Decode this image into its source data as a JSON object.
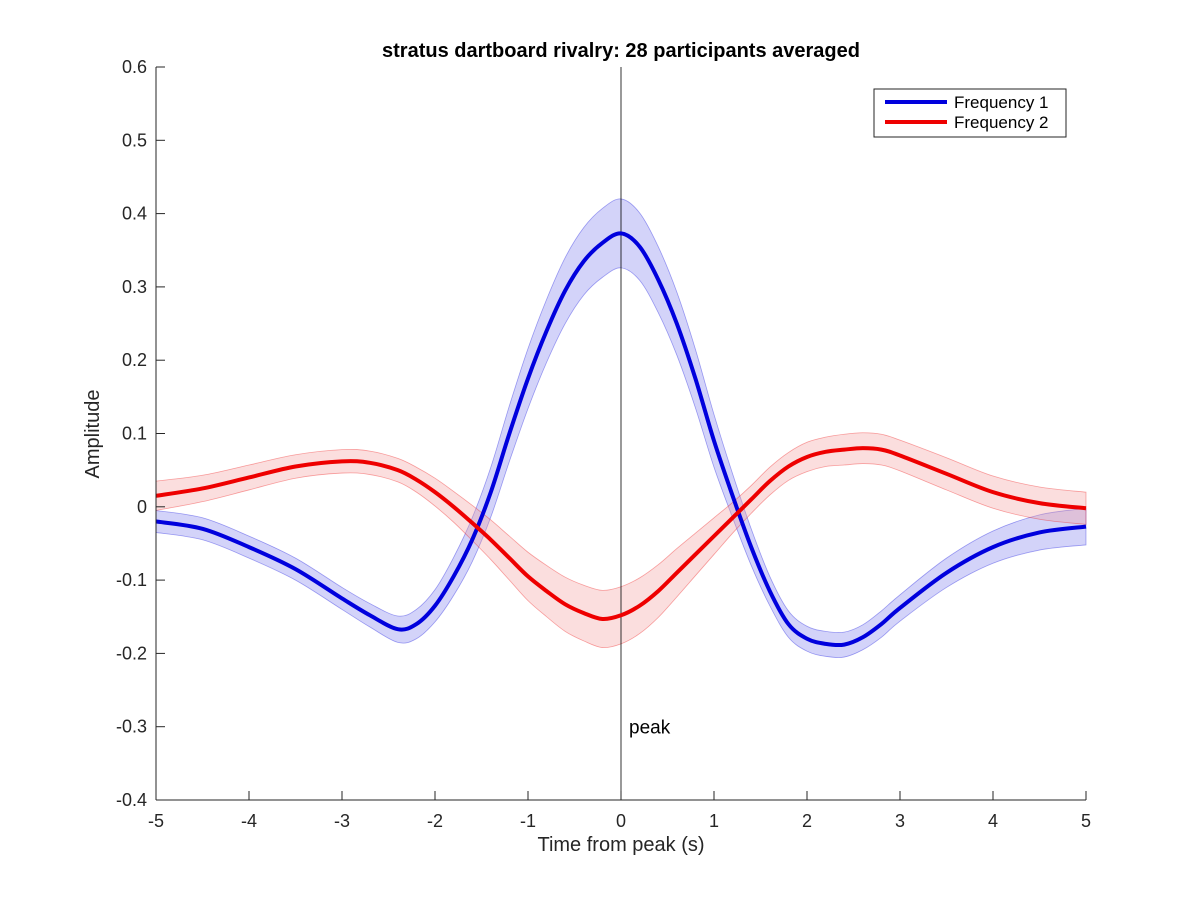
{
  "chart_data": {
    "type": "line",
    "title": "stratus dartboard rivalry: 28 participants averaged",
    "xlabel": "Time from peak (s)",
    "ylabel": "Amplitude",
    "xlim": [
      -5,
      5
    ],
    "ylim": [
      -0.4,
      0.6
    ],
    "xticks": [
      -5,
      -4,
      -3,
      -2,
      -1,
      0,
      1,
      2,
      3,
      4,
      5
    ],
    "yticks": [
      -0.4,
      -0.3,
      -0.2,
      -0.1,
      0,
      0.1,
      0.2,
      0.3,
      0.4,
      0.5,
      0.6
    ],
    "xtick_labels": [
      "-5",
      "-4",
      "-3",
      "-2",
      "-1",
      "0",
      "1",
      "2",
      "3",
      "4",
      "5"
    ],
    "ytick_labels": [
      "-0.4",
      "-0.3",
      "-0.2",
      "-0.1",
      "0",
      "0.1",
      "0.2",
      "0.3",
      "0.4",
      "0.5",
      "0.6"
    ],
    "grid": false,
    "legend_position": "top-right",
    "vline": {
      "x": 0,
      "label": "peak",
      "label_y": -0.3
    },
    "series": [
      {
        "name": "Frequency 1",
        "color": "#0000dd",
        "band_color": "#8080ee",
        "x": [
          -5,
          -4.5,
          -4,
          -3.5,
          -3,
          -2.7,
          -2.4,
          -2.2,
          -2,
          -1.8,
          -1.6,
          -1.4,
          -1.2,
          -1,
          -0.8,
          -0.6,
          -0.4,
          -0.2,
          0,
          0.2,
          0.4,
          0.6,
          0.8,
          1,
          1.2,
          1.4,
          1.6,
          1.8,
          2,
          2.2,
          2.4,
          2.6,
          2.8,
          3,
          3.5,
          4,
          4.5,
          5
        ],
        "y": [
          -0.02,
          -0.03,
          -0.055,
          -0.085,
          -0.125,
          -0.148,
          -0.167,
          -0.16,
          -0.135,
          -0.095,
          -0.045,
          0.02,
          0.1,
          0.175,
          0.24,
          0.295,
          0.335,
          0.36,
          0.373,
          0.355,
          0.31,
          0.25,
          0.175,
          0.09,
          0.015,
          -0.055,
          -0.115,
          -0.16,
          -0.18,
          -0.187,
          -0.188,
          -0.178,
          -0.16,
          -0.138,
          -0.09,
          -0.055,
          -0.035,
          -0.027
        ],
        "band": [
          0.015,
          0.015,
          0.015,
          0.015,
          0.015,
          0.016,
          0.018,
          0.02,
          0.022,
          0.026,
          0.03,
          0.034,
          0.038,
          0.041,
          0.043,
          0.045,
          0.046,
          0.047,
          0.047,
          0.046,
          0.045,
          0.043,
          0.04,
          0.036,
          0.03,
          0.025,
          0.02,
          0.018,
          0.017,
          0.017,
          0.017,
          0.017,
          0.018,
          0.018,
          0.02,
          0.022,
          0.024,
          0.025
        ]
      },
      {
        "name": "Frequency 2",
        "color": "#ee0000",
        "band_color": "#f4a0a0",
        "x": [
          -5,
          -4.5,
          -4,
          -3.5,
          -3,
          -2.7,
          -2.4,
          -2.2,
          -2,
          -1.8,
          -1.6,
          -1.4,
          -1.2,
          -1,
          -0.8,
          -0.6,
          -0.4,
          -0.2,
          0,
          0.2,
          0.4,
          0.6,
          0.8,
          1,
          1.2,
          1.4,
          1.6,
          1.8,
          2,
          2.2,
          2.4,
          2.6,
          2.8,
          3,
          3.5,
          4,
          4.5,
          5
        ],
        "y": [
          0.015,
          0.025,
          0.04,
          0.055,
          0.062,
          0.06,
          0.05,
          0.037,
          0.02,
          0,
          -0.022,
          -0.045,
          -0.07,
          -0.095,
          -0.115,
          -0.133,
          -0.145,
          -0.153,
          -0.148,
          -0.135,
          -0.115,
          -0.09,
          -0.065,
          -0.04,
          -0.015,
          0.01,
          0.035,
          0.055,
          0.068,
          0.075,
          0.078,
          0.08,
          0.078,
          0.07,
          0.045,
          0.02,
          0.005,
          -0.002
        ],
        "band": [
          0.02,
          0.018,
          0.017,
          0.016,
          0.016,
          0.016,
          0.016,
          0.017,
          0.019,
          0.021,
          0.024,
          0.027,
          0.03,
          0.033,
          0.035,
          0.037,
          0.038,
          0.039,
          0.039,
          0.038,
          0.036,
          0.033,
          0.029,
          0.025,
          0.021,
          0.019,
          0.019,
          0.019,
          0.02,
          0.02,
          0.021,
          0.021,
          0.021,
          0.021,
          0.022,
          0.022,
          0.022,
          0.022
        ]
      }
    ]
  }
}
